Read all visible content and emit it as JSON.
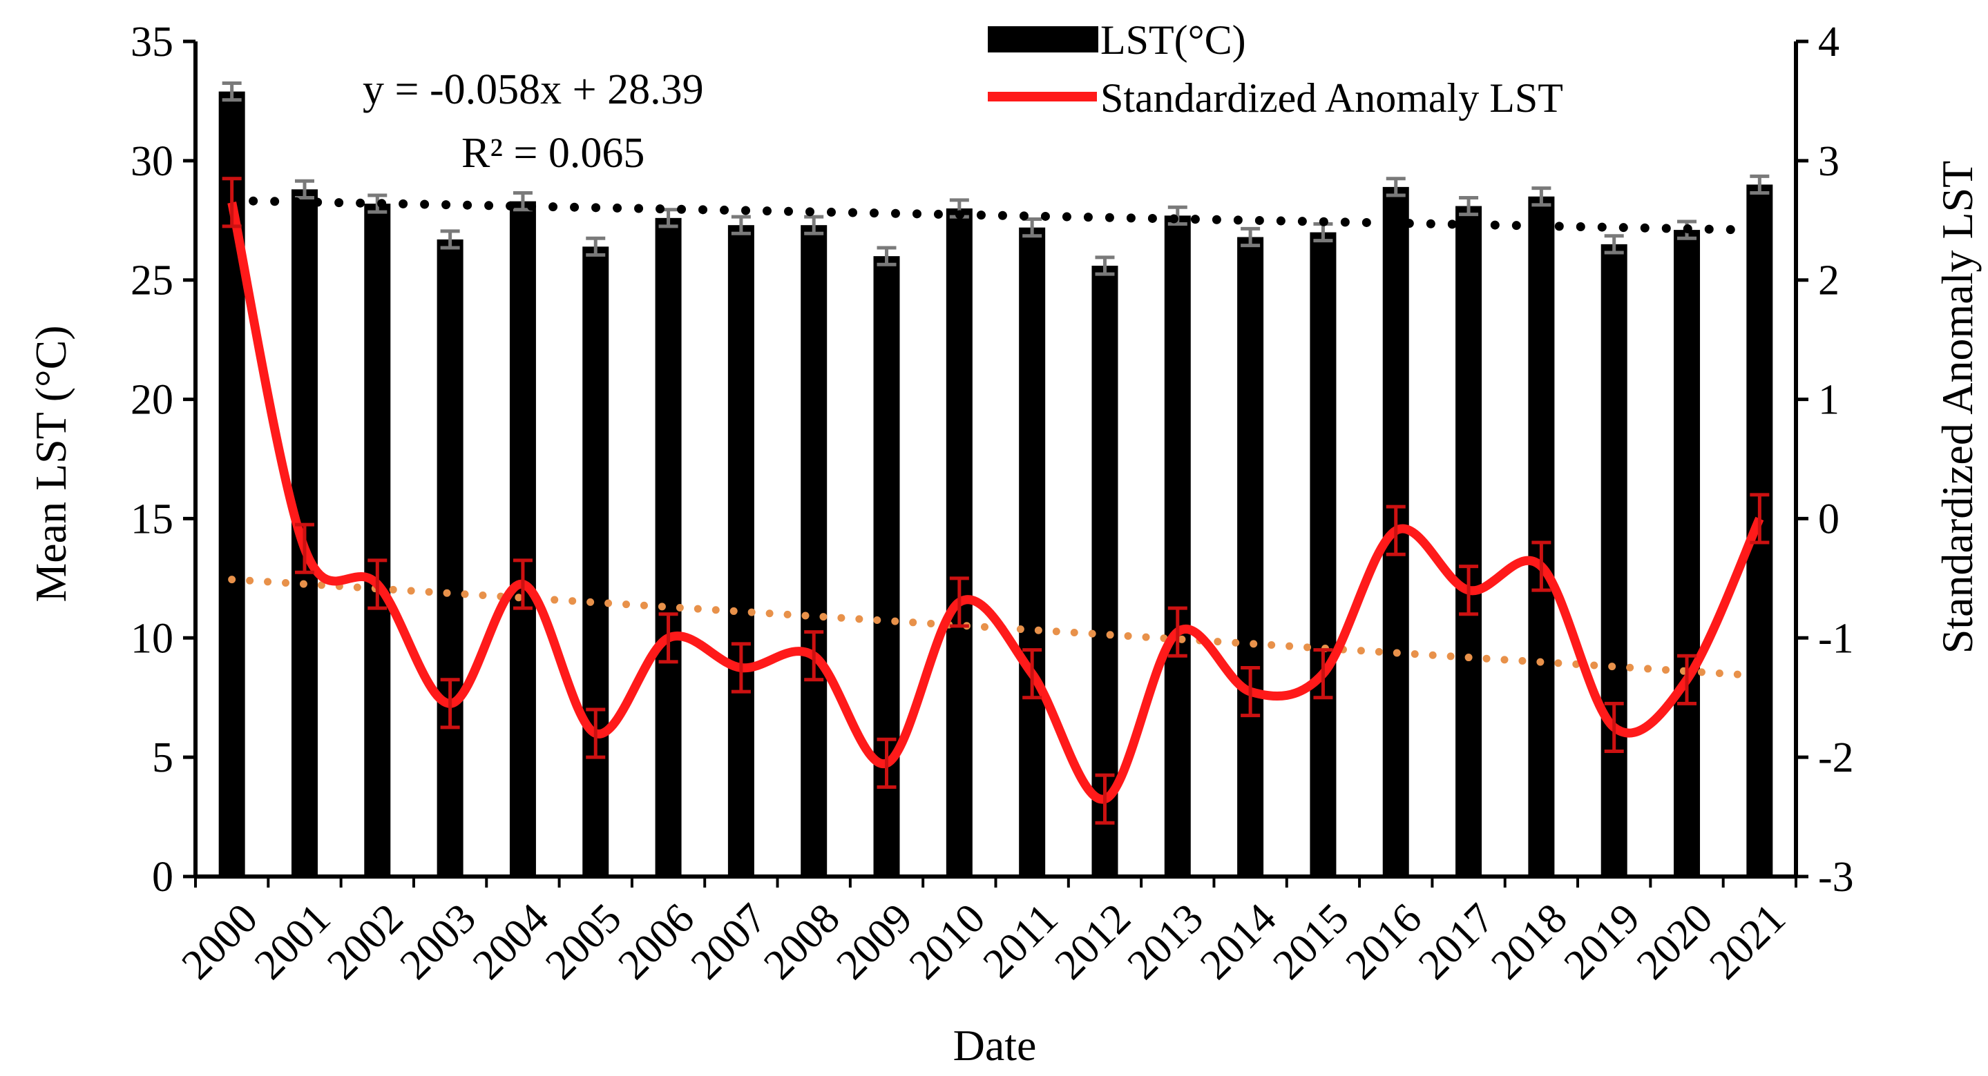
{
  "chart_data": {
    "type": "bar",
    "title": "",
    "xlabel": "Date",
    "ylabel": "Mean LST (°C)",
    "y2label": "Standardized  Anomaly LST",
    "ylim": [
      0,
      35
    ],
    "y2lim": [
      -3,
      4
    ],
    "yticks": [
      "0",
      "5",
      "10",
      "15",
      "20",
      "25",
      "30",
      "35"
    ],
    "y2ticks": [
      "-3",
      "-2",
      "-1",
      "0",
      "1",
      "2",
      "3",
      "4"
    ],
    "categories": [
      "2000",
      "2001",
      "2002",
      "2003",
      "2004",
      "2005",
      "2006",
      "2007",
      "2008",
      "2009",
      "2010",
      "2011",
      "2012",
      "2013",
      "2014",
      "2015",
      "2016",
      "2017",
      "2018",
      "2019",
      "2020",
      "2021"
    ],
    "series": [
      {
        "name": "LST(°C)",
        "kind": "bar",
        "axis": "left",
        "color": "#000000",
        "values": [
          32.9,
          28.8,
          28.2,
          26.7,
          28.3,
          26.4,
          27.6,
          27.3,
          27.3,
          26.0,
          28.0,
          27.2,
          25.6,
          27.7,
          26.8,
          27.0,
          28.9,
          28.1,
          28.5,
          26.5,
          27.1,
          29.0
        ],
        "error": 0.35,
        "trendline": {
          "slope": -0.058,
          "intercept": 28.39,
          "start": 28.33,
          "end": 27.1,
          "style": "dotted",
          "color": "#000000"
        }
      },
      {
        "name": "Standardized Anomaly LST",
        "kind": "line",
        "axis": "right",
        "color": "#ff1a1a",
        "values": [
          2.65,
          -0.25,
          -0.55,
          -1.55,
          -0.55,
          -1.8,
          -1.0,
          -1.25,
          -1.15,
          -2.05,
          -0.7,
          -1.3,
          -2.35,
          -0.95,
          -1.45,
          -1.3,
          -0.1,
          -0.6,
          -0.4,
          -1.75,
          -1.35,
          0.0
        ],
        "error": 0.2,
        "trendline": {
          "start": -0.51,
          "end": -1.31,
          "style": "dotted",
          "color": "#e8914a"
        }
      }
    ],
    "annotations": {
      "equation": "y = -0.058x + 28.39",
      "r2": "R² = 0.065"
    },
    "legend": {
      "position": "top-center"
    }
  }
}
